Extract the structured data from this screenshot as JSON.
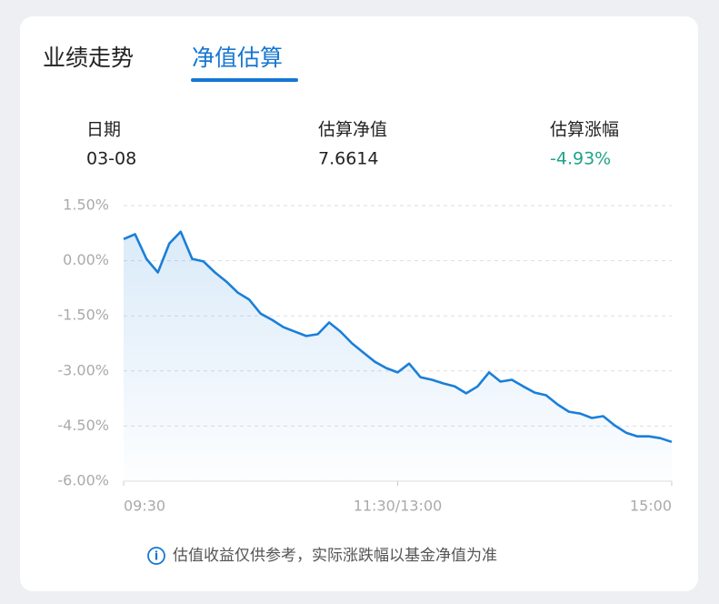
{
  "tabs": [
    "业绩走势",
    "净值估算"
  ],
  "summary": [
    {
      "label": "日期",
      "value": "03-08"
    },
    {
      "label": "估算净值",
      "value": "7.6614"
    },
    {
      "label": "估算涨幅",
      "value": "-4.93%"
    }
  ],
  "chart_data": {
    "type": "line",
    "x": [
      0,
      5,
      10,
      15,
      20,
      25,
      30,
      35,
      40,
      45,
      50,
      55,
      60,
      65,
      70,
      75,
      80,
      85,
      90,
      95,
      100,
      105,
      110,
      115,
      120,
      125,
      130,
      135,
      140,
      145,
      150,
      155,
      160,
      165,
      170,
      175,
      180,
      185,
      190,
      195,
      200,
      205,
      210,
      215,
      220,
      225,
      230,
      235,
      240
    ],
    "series": [
      {
        "color": "#1a7fd9",
        "values": [
          0.59,
          0.72,
          0.05,
          -0.32,
          0.47,
          0.79,
          0.05,
          -0.02,
          -0.32,
          -0.57,
          -0.87,
          -1.06,
          -1.44,
          -1.61,
          -1.81,
          -1.93,
          -2.05,
          -2.0,
          -1.68,
          -1.93,
          -2.25,
          -2.5,
          -2.75,
          -2.92,
          -3.04,
          -2.8,
          -3.17,
          -3.24,
          -3.34,
          -3.42,
          -3.61,
          -3.42,
          -3.04,
          -3.29,
          -3.24,
          -3.42,
          -3.59,
          -3.66,
          -3.91,
          -4.11,
          -4.16,
          -4.28,
          -4.23,
          -4.48,
          -4.68,
          -4.78,
          -4.78,
          -4.83,
          -4.93
        ]
      }
    ],
    "xlim": [
      0,
      240
    ],
    "xticks": [
      {
        "value": 0,
        "label": "09:30"
      },
      {
        "value": 120,
        "label": "11:30/13:00"
      },
      {
        "value": 240,
        "label": "15:00"
      }
    ],
    "ylim": [
      -6,
      1.5
    ],
    "yticks": [
      {
        "value": 1.5,
        "label": "1.50%"
      },
      {
        "value": 0,
        "label": "0.00%"
      },
      {
        "value": -1.5,
        "label": "-1.50%"
      },
      {
        "value": -3,
        "label": "-3.00%"
      },
      {
        "value": -4.5,
        "label": "-4.50%"
      },
      {
        "value": -6,
        "label": "-6.00%"
      }
    ],
    "grid": true
  },
  "note": "估值收益仅供参考，实际涨跌幅以基金净值为准"
}
